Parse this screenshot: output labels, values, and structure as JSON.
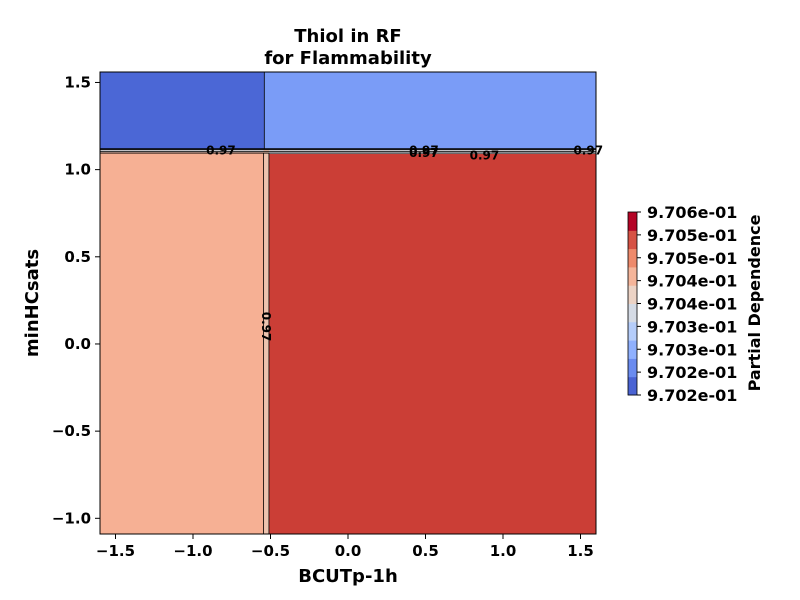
{
  "chart_data": {
    "type": "heatmap",
    "title_line1": "Thiol in RF",
    "title_line2": "for Flammability",
    "xlabel": "BCUTp-1h",
    "ylabel": "minHCsats",
    "xlim": [
      -1.6,
      1.6
    ],
    "ylim": [
      -1.09,
      1.56
    ],
    "xticks": [
      "−1.5",
      "−1.0",
      "−0.5",
      "0.0",
      "0.5",
      "1.0",
      "1.5"
    ],
    "xtick_values": [
      -1.5,
      -1.0,
      -0.5,
      0.0,
      0.5,
      1.0,
      1.5
    ],
    "yticks": [
      "−1.0",
      "−0.5",
      "0.0",
      "0.5",
      "1.0",
      "1.5"
    ],
    "ytick_values": [
      -1.0,
      -0.5,
      0.0,
      0.5,
      1.0,
      1.5
    ],
    "x_split": -0.53,
    "y_split": 1.11,
    "regions": [
      {
        "name": "top-left",
        "x": [
          -1.6,
          -0.54
        ],
        "y": [
          1.12,
          1.56
        ],
        "value": 0.9702,
        "color": "#4b67d6"
      },
      {
        "name": "top-right",
        "x": [
          -0.54,
          1.6
        ],
        "y": [
          1.12,
          1.56
        ],
        "value": 0.97027,
        "color": "#7a9cf7"
      },
      {
        "name": "bottom-left",
        "x": [
          -1.6,
          -0.54
        ],
        "y": [
          -1.09,
          1.1
        ],
        "value": 0.97045,
        "color": "#f6b094"
      },
      {
        "name": "bottom-right",
        "x": [
          -0.51,
          1.6
        ],
        "y": [
          -1.09,
          1.09
        ],
        "value": 0.9706,
        "color": "#cb3e36"
      }
    ],
    "contour_labels": [
      {
        "text": "0.97",
        "x": -0.82,
        "y": 1.11,
        "rotate": 0
      },
      {
        "text": "0.97",
        "x": 0.49,
        "y": 1.11,
        "rotate": 0
      },
      {
        "text": "0.97",
        "x": 0.49,
        "y": 1.095,
        "rotate": 0
      },
      {
        "text": "0.97",
        "x": 0.88,
        "y": 1.08,
        "rotate": 0
      },
      {
        "text": "0.97",
        "x": 1.55,
        "y": 1.11,
        "rotate": 0
      },
      {
        "text": "0.97",
        "x": -0.53,
        "y": 0.1,
        "rotate": 90
      }
    ],
    "colorbar": {
      "label": "Partial Dependence",
      "ticks": [
        "9.706e-01",
        "9.705e-01",
        "9.705e-01",
        "9.704e-01",
        "9.704e-01",
        "9.703e-01",
        "9.703e-01",
        "9.702e-01",
        "9.702e-01"
      ],
      "colors": [
        "#4a63d3",
        "#6a8bef",
        "#8fb0fe",
        "#b5cdfa",
        "#d5dbe5",
        "#ecd3c5",
        "#f5b59a",
        "#ee8a6b",
        "#d65244",
        "#b40426"
      ]
    }
  }
}
